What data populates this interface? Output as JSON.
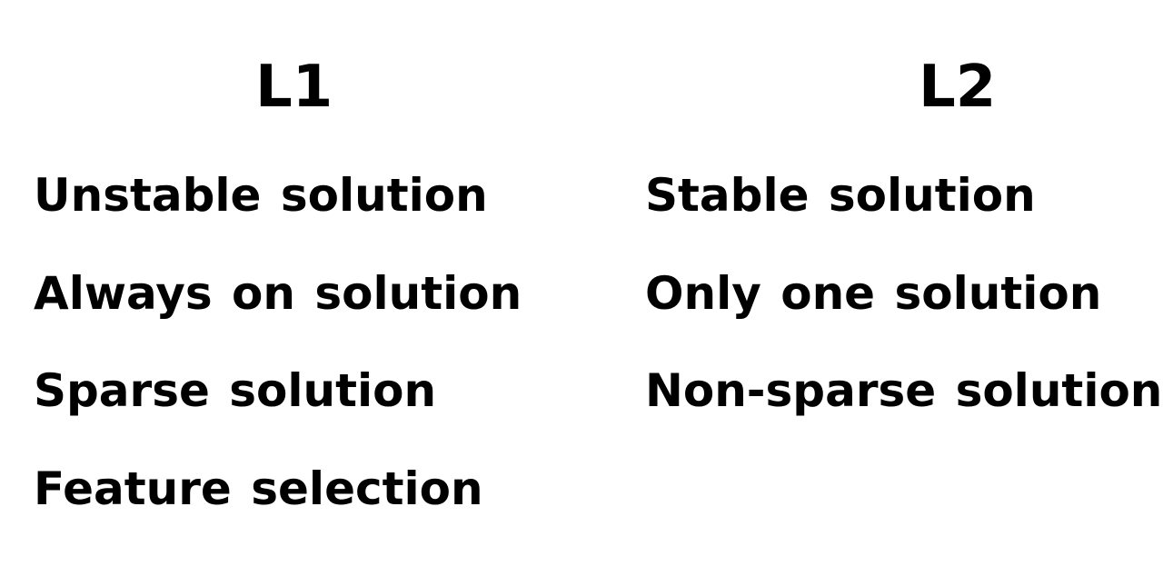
{
  "left": {
    "title": "L1",
    "items": [
      "Unstable solution",
      "Always on solution",
      "Sparse solution",
      "Feature selection"
    ]
  },
  "right": {
    "title": "L2",
    "items": [
      "Stable solution",
      "Only one solution",
      "Non-sparse solution"
    ]
  }
}
